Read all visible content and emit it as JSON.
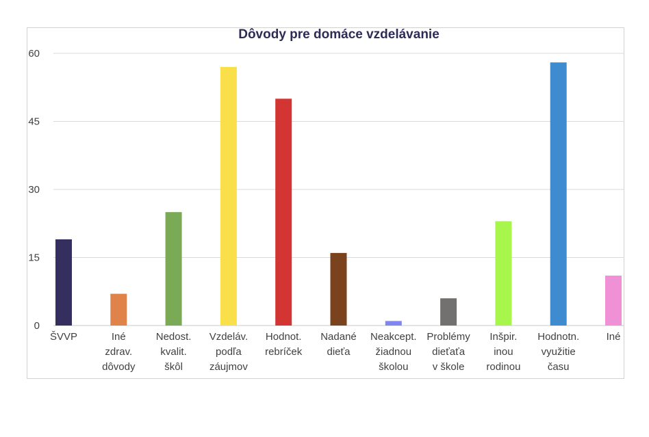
{
  "chart_data": {
    "type": "bar",
    "title": "Dôvody pre domáce vzdelávanie",
    "xlabel": "",
    "ylabel": "",
    "ylim": [
      0,
      60
    ],
    "yticks": [
      0,
      15,
      30,
      45,
      60
    ],
    "grid": true,
    "legend": "none",
    "categories": [
      [
        "ŠVVP"
      ],
      [
        "Iné",
        "zdrav.",
        "dôvody"
      ],
      [
        "Nedost.",
        "kvalit.",
        "škôl"
      ],
      [
        "Vzdeláv.",
        "podľa",
        "záujmov"
      ],
      [
        "Hodnot.",
        "rebríček"
      ],
      [
        "Nadané",
        "dieťa"
      ],
      [
        "Neakcept.",
        "žiadnou",
        "školou"
      ],
      [
        "Problémy",
        "dieťaťa",
        "v škole"
      ],
      [
        "Inšpir.",
        "inou",
        "rodinou"
      ],
      [
        "Hodnotn.",
        "využitie",
        "času"
      ],
      [
        "Iné"
      ]
    ],
    "values": [
      19,
      7,
      25,
      57,
      50,
      16,
      1,
      6,
      23,
      58,
      11
    ],
    "colors": [
      "#342f5e",
      "#e0834a",
      "#7aaa56",
      "#f9df4a",
      "#d23532",
      "#7b421e",
      "#7f86f2",
      "#737070",
      "#a8f64c",
      "#3f8bd0",
      "#ef91d4"
    ]
  }
}
